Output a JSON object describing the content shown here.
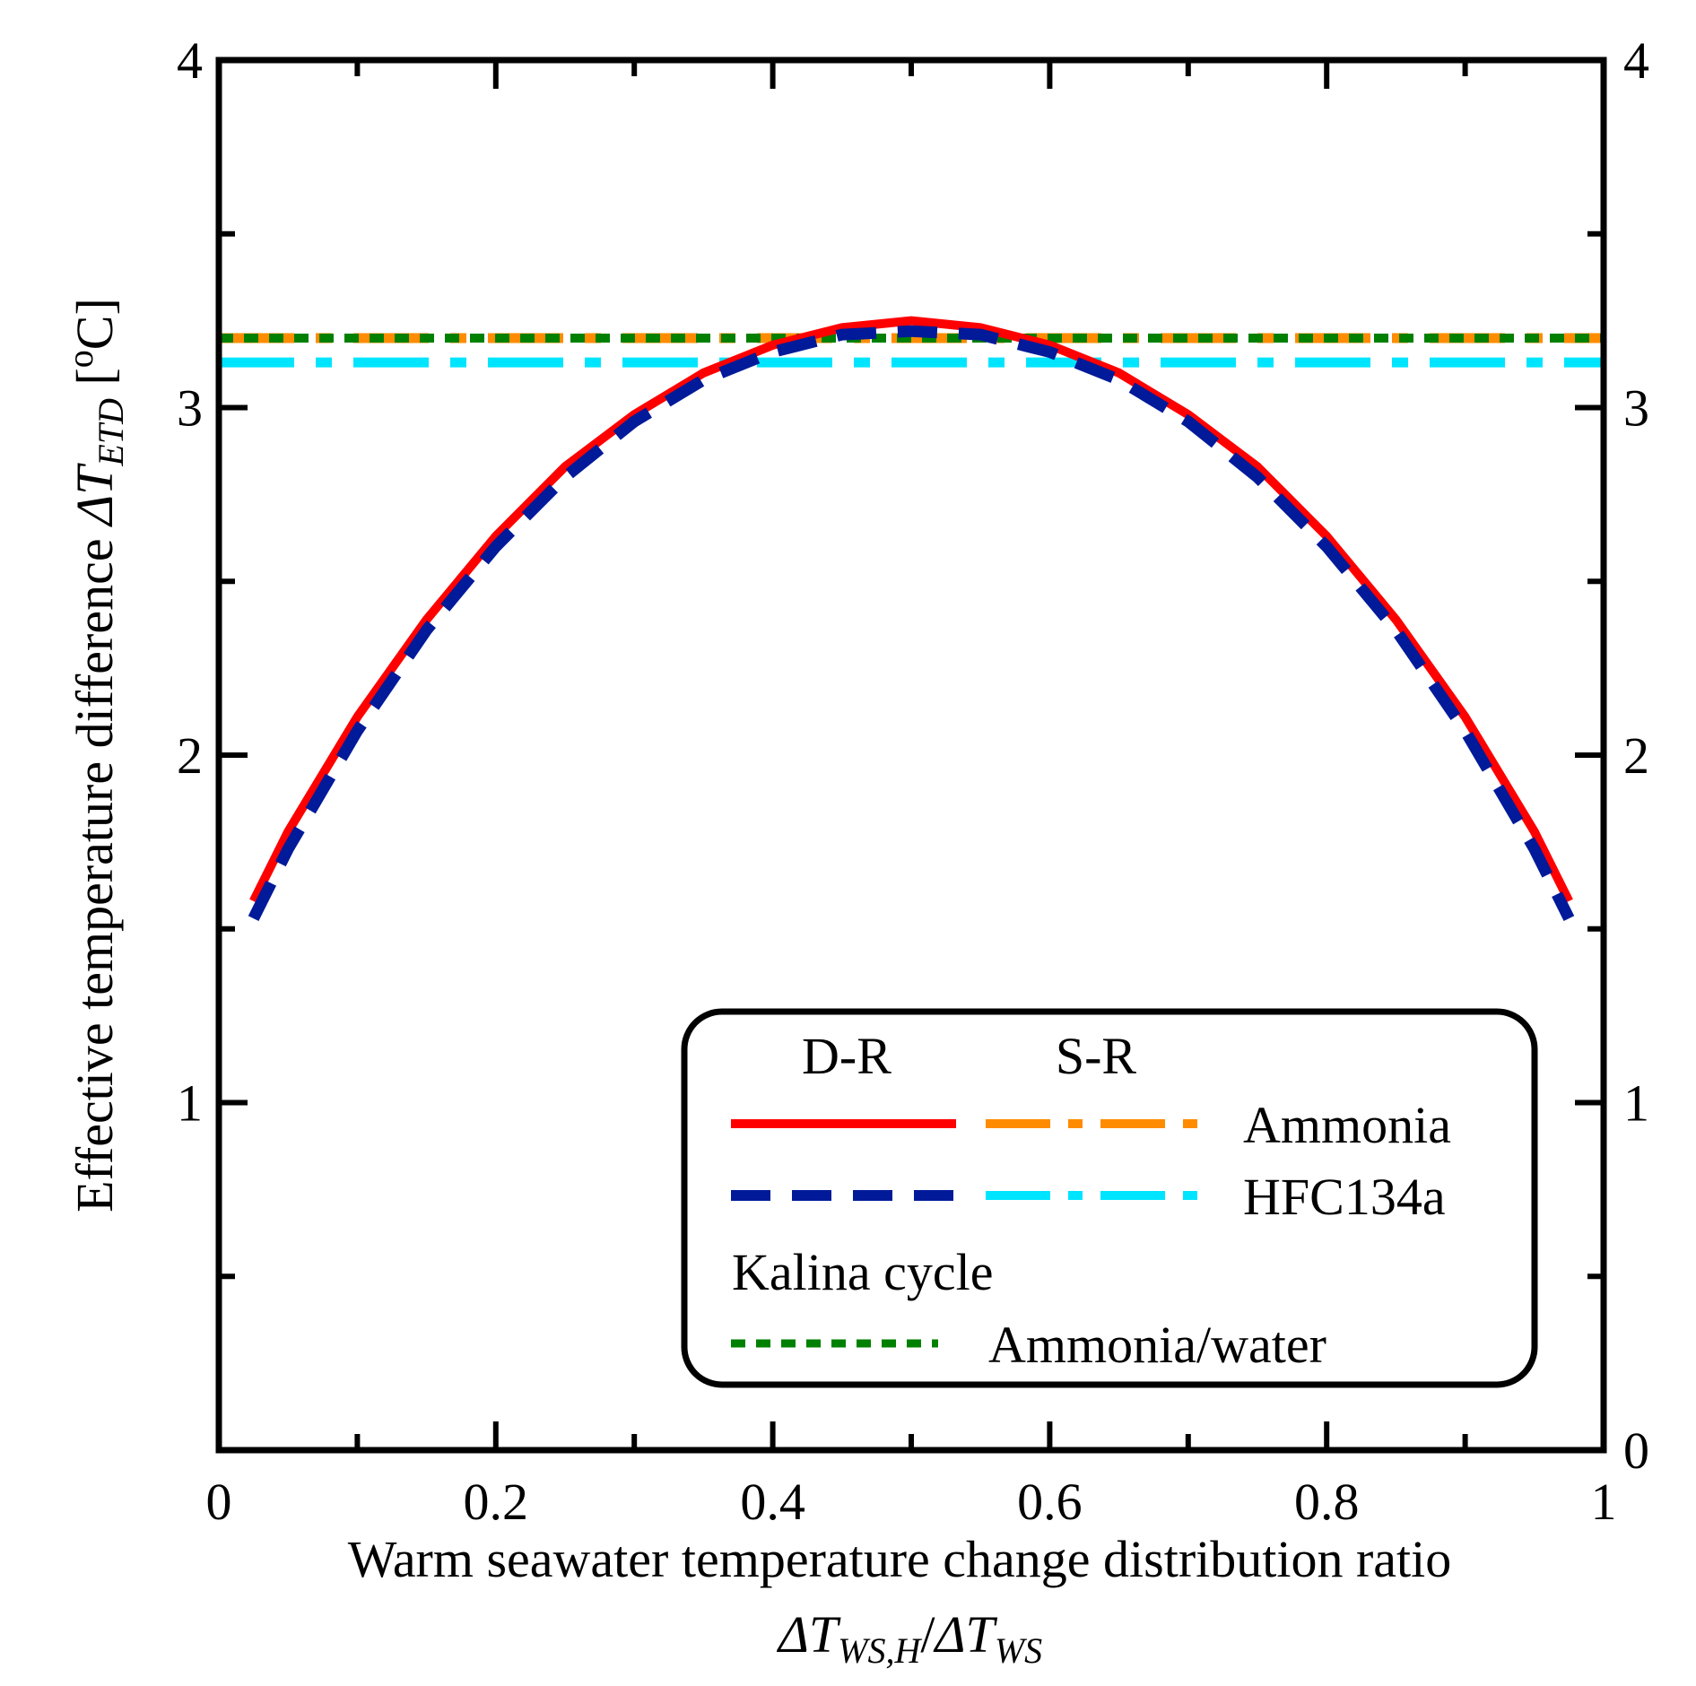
{
  "chart_data": {
    "type": "line",
    "title": "",
    "xlabel": "Warm seawater temperature change distribution ratio",
    "xlabel_formula": {
      "delta1": "ΔT",
      "sub1": "WS,H",
      "slash": "/",
      "delta2": "ΔT",
      "sub2": "WS"
    },
    "ylabel": "Effective temperature difference",
    "ylabel_formula": {
      "delta": "ΔT",
      "sub": "ETD",
      "unit": "[",
      "unit_sup": "o",
      "unit_end": "C]"
    },
    "xlim": [
      0,
      1
    ],
    "ylim": [
      0,
      4
    ],
    "x_ticks": [
      {
        "value": 0,
        "label": "0"
      },
      {
        "value": 0.2,
        "label": "0.2"
      },
      {
        "value": 0.4,
        "label": "0.4"
      },
      {
        "value": 0.6,
        "label": "0.6"
      },
      {
        "value": 0.8,
        "label": "0.8"
      },
      {
        "value": 1,
        "label": "1"
      }
    ],
    "x_minor_ticks": [
      0.1,
      0.3,
      0.5,
      0.7,
      0.9
    ],
    "y_ticks_left": [
      {
        "value": 1,
        "label": "1"
      },
      {
        "value": 2,
        "label": "2"
      },
      {
        "value": 3,
        "label": "3"
      },
      {
        "value": 4,
        "label": "4"
      }
    ],
    "y_ticks_right": [
      {
        "value": 0,
        "label": "0"
      },
      {
        "value": 1,
        "label": "1"
      },
      {
        "value": 2,
        "label": "2"
      },
      {
        "value": 3,
        "label": "3"
      },
      {
        "value": 4,
        "label": "4"
      }
    ],
    "y_minor_ticks": [
      0.5,
      1.5,
      2.5,
      3.5
    ],
    "series": [
      {
        "name": "Ammonia D-R",
        "cycle": "D-R",
        "color": "#ff0000",
        "style": "solid",
        "x": [
          0.025,
          0.05,
          0.1,
          0.15,
          0.2,
          0.25,
          0.3,
          0.35,
          0.4,
          0.45,
          0.5,
          0.55,
          0.6,
          0.65,
          0.7,
          0.75,
          0.8,
          0.85,
          0.9,
          0.95,
          0.975
        ],
        "y": [
          1.58,
          1.78,
          2.11,
          2.39,
          2.63,
          2.83,
          2.98,
          3.1,
          3.18,
          3.23,
          3.25,
          3.23,
          3.18,
          3.1,
          2.98,
          2.83,
          2.63,
          2.39,
          2.11,
          1.78,
          1.58
        ]
      },
      {
        "name": "HFC134a D-R",
        "cycle": "D-R",
        "color": "#001a99",
        "style": "dashed",
        "x": [
          0.025,
          0.05,
          0.1,
          0.15,
          0.2,
          0.25,
          0.3,
          0.35,
          0.4,
          0.45,
          0.5,
          0.55,
          0.6,
          0.65,
          0.7,
          0.75,
          0.8,
          0.85,
          0.9,
          0.95,
          0.975
        ],
        "y": [
          1.53,
          1.73,
          2.07,
          2.36,
          2.6,
          2.8,
          2.96,
          3.08,
          3.16,
          3.21,
          3.22,
          3.21,
          3.16,
          3.08,
          2.96,
          2.8,
          2.6,
          2.36,
          2.07,
          1.73,
          1.53
        ]
      },
      {
        "name": "Ammonia S-R",
        "cycle": "S-R",
        "color": "#ff8c00",
        "style": "dashdot",
        "x": [
          0,
          1
        ],
        "y": [
          3.2,
          3.2
        ]
      },
      {
        "name": "HFC134a S-R",
        "cycle": "S-R",
        "color": "#00e5ff",
        "style": "dashdot",
        "x": [
          0,
          1
        ],
        "y": [
          3.13,
          3.13
        ]
      },
      {
        "name": "Kalina cycle Ammonia/water",
        "cycle": "Kalina",
        "color": "#008000",
        "style": "dotted",
        "x": [
          0,
          1
        ],
        "y": [
          3.2,
          3.2
        ]
      }
    ],
    "legend": {
      "placement": "bottom-right",
      "header_dr": "D-R",
      "header_sr": "S-R",
      "ammonia": "Ammonia",
      "hfc": "HFC134a",
      "kalina_title": "Kalina cycle",
      "kalina_fluid": "Ammonia/water"
    }
  }
}
